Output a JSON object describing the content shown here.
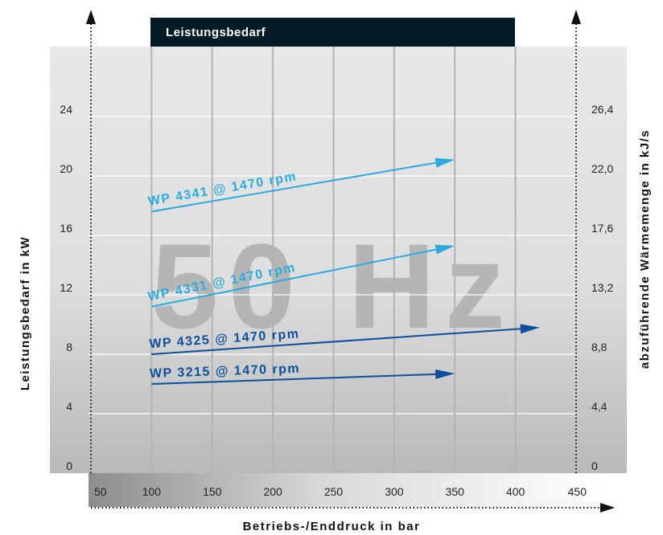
{
  "chart_data": {
    "type": "line",
    "title": "Leistungsbedarf",
    "watermark": "50 Hz",
    "xlabel": "Betriebs-/Enddruck in bar",
    "ylabel": "Leistungsbedarf in kW",
    "y2label": "abzuführende Wärmemenge in kJ/s",
    "x_ticks": [
      "50",
      "100",
      "150",
      "200",
      "250",
      "300",
      "350",
      "400",
      "450"
    ],
    "y_ticks": [
      "0",
      "4",
      "8",
      "12",
      "16",
      "20",
      "24"
    ],
    "y2_ticks": [
      "0",
      "4,4",
      "8,8",
      "13,2",
      "17,6",
      "22,0",
      "26,4"
    ],
    "xlim": [
      50,
      450
    ],
    "ylim": [
      0,
      28.7
    ],
    "grid": true,
    "series": [
      {
        "name": "WP 4341 @ 1470 rpm",
        "color": "#29abe2",
        "x": [
          100,
          350
        ],
        "y": [
          17.6,
          21.1
        ]
      },
      {
        "name": "WP 4331 @ 1470 rpm",
        "color": "#29abe2",
        "x": [
          100,
          350
        ],
        "y": [
          11.2,
          15.3
        ]
      },
      {
        "name": "WP 4325 @ 1470 rpm",
        "color": "#0a4f9e",
        "x": [
          100,
          420
        ],
        "y": [
          8.0,
          9.8
        ]
      },
      {
        "name": "WP 3215 @ 1470 rpm",
        "color": "#0a4f9e",
        "x": [
          100,
          350
        ],
        "y": [
          6.0,
          6.7
        ]
      }
    ]
  }
}
